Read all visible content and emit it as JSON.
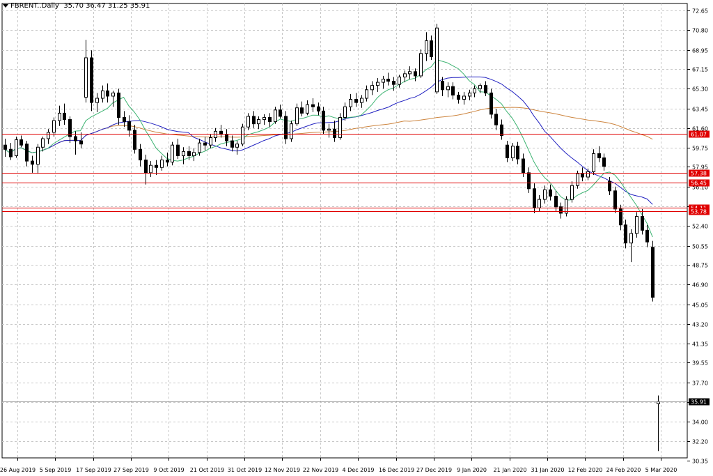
{
  "symbol_header": {
    "symbol": "FBRENT..Daily",
    "ohlc": "35.70 36.47 31.25 35.91"
  },
  "chart_data": {
    "type": "candlestick",
    "y_ticks": [
      "72.65",
      "70.80",
      "68.95",
      "67.15",
      "65.30",
      "63.45",
      "61.60",
      "59.75",
      "57.95",
      "56.10",
      "54.25",
      "52.40",
      "50.55",
      "48.75",
      "46.90",
      "45.05",
      "43.20",
      "41.35",
      "39.55",
      "37.70",
      "35.85",
      "34.00",
      "32.20",
      "30.35"
    ],
    "ylim": [
      30.35,
      72.65
    ],
    "x_labels": [
      "26 Aug 2019",
      "5 Sep 2019",
      "17 Sep 2019",
      "27 Sep 2019",
      "9 Oct 2019",
      "21 Oct 2019",
      "31 Oct 2019",
      "12 Nov 2019",
      "22 Nov 2019",
      "4 Dec 2019",
      "16 Dec 2019",
      "27 Dec 2019",
      "9 Jan 2020",
      "21 Jan 2020",
      "31 Jan 2020",
      "12 Feb 2020",
      "24 Feb 2020",
      "5 Mar 2020"
    ],
    "horizontal_levels": [
      {
        "label": "61.07",
        "value": 61.07,
        "color": "#e00000"
      },
      {
        "label": "57.38",
        "value": 57.38,
        "color": "#e00000"
      },
      {
        "label": "56.45",
        "value": 56.45,
        "color": "#e00000"
      },
      {
        "label": "54.11",
        "value": 54.11,
        "color": "#e00000"
      },
      {
        "label": "53.78",
        "value": 53.78,
        "color": "#e00000"
      }
    ],
    "current_price": {
      "label": "35.91",
      "value": 35.91
    },
    "grid": true,
    "colors": {
      "grid": "#c8c8c8",
      "level": "#e00000",
      "ma_fast": "#3cb371",
      "ma_mid": "#2020c0",
      "ma_slow": "#cd853f",
      "candle": "#000000"
    },
    "candles": [
      [
        60.0,
        60.6,
        58.9,
        59.6
      ],
      [
        59.6,
        60.2,
        58.6,
        58.9
      ],
      [
        59.0,
        60.8,
        58.8,
        60.5
      ],
      [
        60.5,
        60.9,
        59.8,
        60.0
      ],
      [
        60.1,
        60.4,
        58.0,
        58.5
      ],
      [
        58.5,
        59.0,
        57.4,
        58.2
      ],
      [
        58.2,
        60.1,
        57.3,
        59.8
      ],
      [
        59.8,
        60.8,
        59.4,
        60.6
      ],
      [
        60.6,
        61.5,
        60.1,
        61.2
      ],
      [
        61.2,
        62.6,
        60.8,
        62.3
      ],
      [
        62.3,
        63.7,
        61.8,
        63.0
      ],
      [
        63.0,
        63.9,
        61.9,
        62.4
      ],
      [
        62.4,
        62.7,
        60.2,
        60.8
      ],
      [
        60.8,
        61.3,
        59.1,
        60.4
      ],
      [
        60.4,
        61.2,
        59.7,
        60.1
      ],
      [
        64.5,
        69.9,
        64.0,
        68.2
      ],
      [
        68.2,
        68.9,
        63.2,
        64.0
      ],
      [
        64.0,
        64.9,
        63.1,
        64.4
      ],
      [
        64.4,
        65.6,
        64.0,
        65.1
      ],
      [
        65.1,
        65.8,
        64.0,
        64.6
      ],
      [
        64.6,
        65.1,
        63.6,
        64.9
      ],
      [
        64.9,
        65.3,
        61.9,
        62.6
      ],
      [
        62.6,
        63.2,
        61.7,
        62.2
      ],
      [
        62.2,
        62.8,
        60.8,
        61.4
      ],
      [
        61.4,
        61.9,
        59.2,
        59.6
      ],
      [
        59.6,
        60.1,
        58.0,
        58.6
      ],
      [
        58.6,
        59.1,
        56.3,
        57.4
      ],
      [
        57.4,
        58.5,
        57.0,
        58.1
      ],
      [
        58.1,
        58.6,
        57.2,
        57.9
      ],
      [
        57.9,
        59.0,
        57.6,
        58.6
      ],
      [
        58.6,
        59.3,
        58.0,
        58.4
      ],
      [
        58.4,
        60.3,
        58.1,
        60.0
      ],
      [
        60.0,
        60.6,
        58.7,
        59.0
      ],
      [
        59.0,
        59.8,
        58.2,
        59.4
      ],
      [
        59.4,
        59.9,
        58.6,
        59.0
      ],
      [
        59.0,
        59.7,
        58.5,
        59.3
      ],
      [
        59.3,
        60.6,
        59.0,
        60.2
      ],
      [
        60.2,
        60.8,
        59.5,
        60.0
      ],
      [
        60.0,
        61.0,
        59.7,
        60.7
      ],
      [
        60.7,
        61.6,
        60.3,
        61.3
      ],
      [
        61.3,
        61.9,
        60.7,
        61.0
      ],
      [
        61.0,
        61.5,
        59.9,
        60.4
      ],
      [
        60.4,
        60.9,
        59.4,
        59.8
      ],
      [
        59.8,
        60.4,
        59.1,
        60.1
      ],
      [
        60.1,
        62.0,
        59.9,
        61.7
      ],
      [
        61.7,
        63.0,
        61.4,
        62.7
      ],
      [
        62.7,
        63.2,
        61.6,
        62.0
      ],
      [
        62.0,
        62.7,
        61.5,
        62.4
      ],
      [
        62.4,
        62.9,
        61.9,
        62.6
      ],
      [
        62.6,
        63.0,
        61.7,
        62.2
      ],
      [
        62.2,
        63.6,
        62.0,
        63.3
      ],
      [
        63.3,
        63.8,
        62.5,
        62.7
      ],
      [
        62.7,
        63.2,
        60.1,
        60.6
      ],
      [
        60.6,
        62.3,
        60.3,
        62.0
      ],
      [
        62.0,
        63.9,
        61.8,
        63.5
      ],
      [
        63.5,
        64.1,
        62.7,
        63.0
      ],
      [
        63.0,
        64.2,
        62.8,
        63.8
      ],
      [
        63.8,
        64.4,
        63.1,
        63.6
      ],
      [
        63.6,
        64.0,
        62.8,
        63.2
      ],
      [
        63.2,
        63.6,
        61.0,
        61.4
      ],
      [
        61.4,
        62.0,
        60.7,
        61.5
      ],
      [
        61.5,
        62.3,
        60.3,
        60.7
      ],
      [
        60.7,
        63.0,
        60.5,
        62.6
      ],
      [
        62.6,
        64.0,
        62.3,
        63.6
      ],
      [
        63.6,
        64.8,
        63.2,
        64.3
      ],
      [
        64.3,
        64.9,
        63.6,
        64.0
      ],
      [
        64.0,
        64.7,
        63.5,
        64.4
      ],
      [
        64.4,
        65.6,
        64.1,
        65.2
      ],
      [
        65.2,
        66.0,
        64.7,
        65.6
      ],
      [
        65.6,
        66.3,
        65.0,
        65.9
      ],
      [
        65.9,
        66.5,
        65.3,
        66.2
      ],
      [
        66.2,
        66.8,
        65.6,
        66.0
      ],
      [
        66.0,
        66.4,
        65.1,
        65.7
      ],
      [
        65.7,
        66.6,
        65.4,
        66.4
      ],
      [
        66.4,
        67.0,
        65.9,
        66.7
      ],
      [
        66.7,
        67.4,
        66.2,
        66.9
      ],
      [
        66.9,
        67.2,
        66.0,
        66.5
      ],
      [
        66.5,
        69.0,
        66.3,
        68.6
      ],
      [
        68.6,
        70.6,
        67.9,
        69.8
      ],
      [
        69.8,
        70.3,
        68.0,
        68.3
      ],
      [
        65.0,
        71.4,
        64.8,
        71.0
      ],
      [
        66.0,
        66.4,
        64.6,
        65.2
      ],
      [
        65.2,
        65.9,
        64.5,
        65.5
      ],
      [
        65.5,
        65.9,
        64.3,
        64.7
      ],
      [
        64.7,
        65.0,
        63.9,
        64.3
      ],
      [
        64.3,
        65.0,
        63.8,
        64.6
      ],
      [
        64.6,
        65.2,
        64.2,
        64.9
      ],
      [
        64.9,
        65.6,
        64.5,
        65.3
      ],
      [
        65.3,
        65.8,
        64.9,
        65.6
      ],
      [
        65.6,
        66.0,
        64.6,
        64.9
      ],
      [
        64.9,
        65.3,
        62.5,
        62.9
      ],
      [
        62.9,
        63.4,
        61.4,
        61.9
      ],
      [
        61.9,
        62.4,
        60.5,
        60.9
      ],
      [
        60.0,
        60.4,
        58.4,
        58.8
      ],
      [
        58.8,
        60.2,
        58.5,
        59.9
      ],
      [
        59.9,
        60.3,
        58.2,
        58.7
      ],
      [
        58.7,
        59.2,
        57.0,
        57.4
      ],
      [
        57.4,
        57.9,
        55.5,
        55.9
      ],
      [
        55.9,
        56.4,
        53.6,
        54.1
      ],
      [
        54.1,
        55.3,
        53.8,
        54.9
      ],
      [
        54.9,
        56.2,
        54.5,
        55.8
      ],
      [
        55.8,
        56.3,
        54.8,
        55.2
      ],
      [
        55.2,
        55.7,
        53.8,
        54.2
      ],
      [
        54.2,
        54.6,
        53.1,
        53.6
      ],
      [
        53.6,
        55.2,
        53.3,
        54.9
      ],
      [
        54.9,
        56.6,
        54.6,
        56.2
      ],
      [
        56.2,
        57.6,
        55.9,
        57.3
      ],
      [
        57.3,
        57.9,
        56.6,
        57.0
      ],
      [
        57.0,
        57.8,
        56.7,
        57.5
      ],
      [
        57.5,
        59.6,
        57.2,
        59.2
      ],
      [
        59.2,
        59.9,
        58.4,
        58.8
      ],
      [
        58.8,
        59.2,
        57.6,
        58.0
      ],
      [
        56.6,
        57.0,
        55.3,
        55.7
      ],
      [
        55.7,
        56.1,
        53.6,
        54.0
      ],
      [
        54.0,
        54.4,
        52.0,
        52.5
      ],
      [
        52.5,
        53.0,
        50.3,
        50.8
      ],
      [
        50.8,
        52.1,
        49.0,
        51.7
      ],
      [
        51.7,
        53.7,
        51.3,
        53.3
      ],
      [
        53.3,
        54.0,
        51.6,
        52.0
      ],
      [
        52.0,
        52.5,
        50.4,
        50.9
      ],
      [
        50.4,
        51.0,
        45.3,
        45.7
      ],
      [
        35.7,
        36.47,
        31.25,
        35.91
      ]
    ]
  }
}
